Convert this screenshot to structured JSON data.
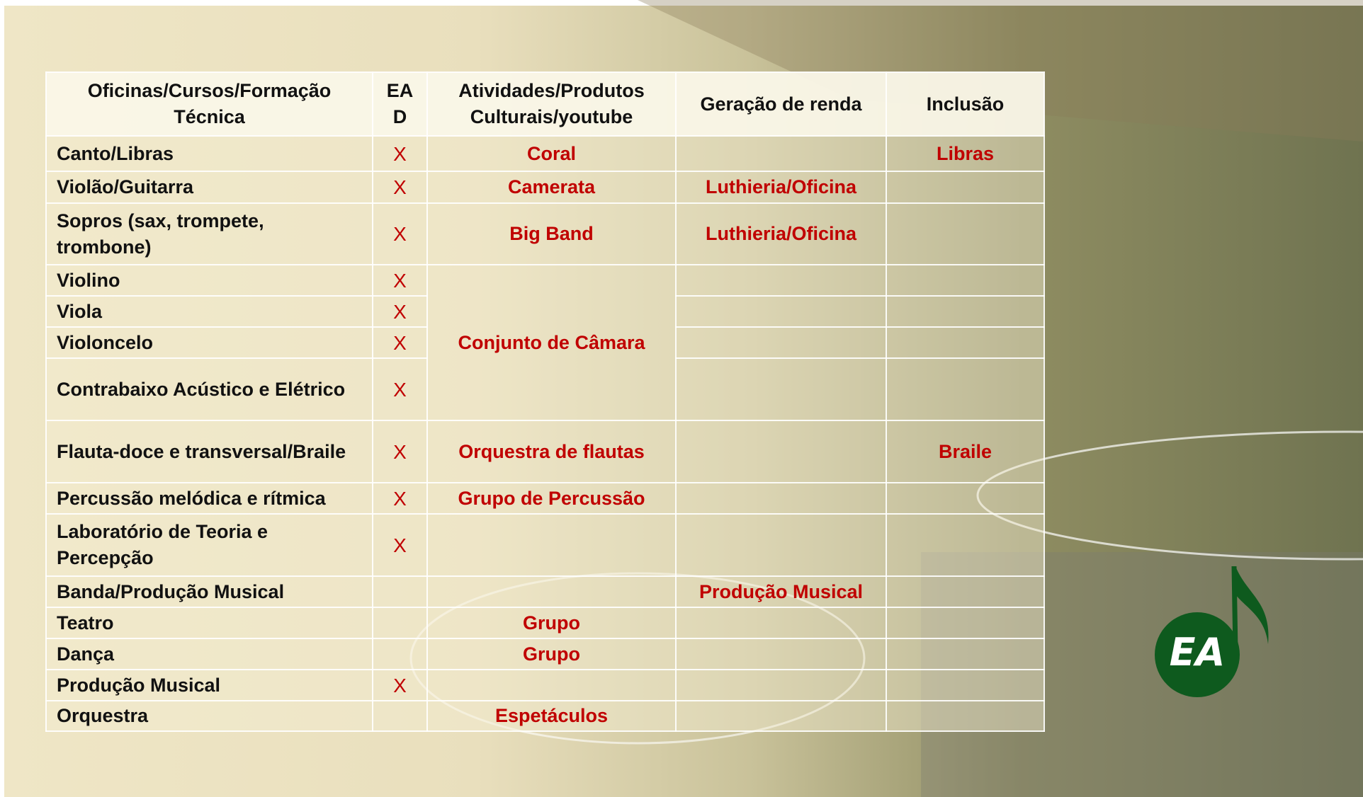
{
  "table": {
    "header": [
      "Oficinas/Cursos/Formação Técnica",
      "EAD",
      "Atividades/Produtos Culturais/youtube",
      "Geração de renda",
      "Inclusão"
    ],
    "rows": [
      {
        "course": "Canto/Libras",
        "ead": "X",
        "activity": "Coral",
        "inclusion": "Libras"
      },
      {
        "course": "Violão/Guitarra",
        "ead": "X",
        "activity": "Camerata",
        "income": "Luthieria/Oficina"
      },
      {
        "course": "Sopros (sax, trompete, trombone)",
        "ead": "X",
        "activity": "Big Band",
        "income": "Luthieria/Oficina"
      },
      {
        "course": "Violino",
        "ead": "X",
        "activity": "Conjunto de Câmara"
      },
      {
        "course": "Viola",
        "ead": "X"
      },
      {
        "course": "Violoncelo",
        "ead": "X"
      },
      {
        "course": "Contrabaixo Acústico e Elétrico",
        "ead": "X"
      },
      {
        "course": "Flauta-doce e transversal/Braile",
        "ead": "X",
        "activity": "Orquestra de flautas",
        "inclusion": "Braile"
      },
      {
        "course": "Percussão melódica e rítmica",
        "ead": "X",
        "activity": "Grupo de Percussão"
      },
      {
        "course": "Laboratório de Teoria e Percepção",
        "ead": "X"
      },
      {
        "course": "Banda/Produção Musical",
        "income": "Produção Musical"
      },
      {
        "course": "Teatro",
        "activity": "Grupo"
      },
      {
        "course": "Dança",
        "activity": "Grupo"
      },
      {
        "course": "Produção Musical",
        "ead": "X"
      },
      {
        "course": "Orquestra",
        "activity": "Espetáculos"
      }
    ]
  },
  "logo": {
    "text": "EA"
  }
}
